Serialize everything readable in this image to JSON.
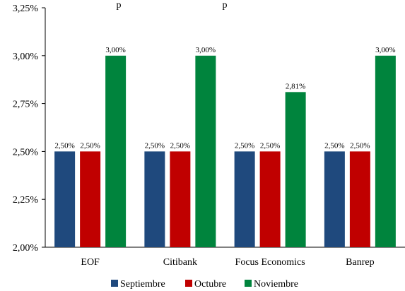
{
  "chart_data": {
    "type": "bar",
    "title_fragments": [
      "p",
      "p"
    ],
    "categories": [
      "EOF",
      "Citibank",
      "Focus Economics",
      "Banrep"
    ],
    "series": [
      {
        "name": "Septiembre",
        "color": "#1F497D",
        "values": [
          2.5,
          2.5,
          2.5,
          2.5
        ],
        "labels": [
          "2,50%",
          "2,50%",
          "2,50%",
          "2,50%"
        ]
      },
      {
        "name": "Octubre",
        "color": "#C00000",
        "values": [
          2.5,
          2.5,
          2.5,
          2.5
        ],
        "labels": [
          "2,50%",
          "2,50%",
          "2,50%",
          "2,50%"
        ]
      },
      {
        "name": "Noviembre",
        "color": "#00843D",
        "values": [
          3.0,
          3.0,
          2.81,
          3.0
        ],
        "labels": [
          "3,00%",
          "3,00%",
          "2,81%",
          "3,00%"
        ]
      }
    ],
    "ylim": [
      2.0,
      3.25
    ],
    "yticks": [
      2.0,
      2.25,
      2.5,
      2.75,
      3.0,
      3.25
    ],
    "ytick_labels": [
      "2,00%",
      "2,25%",
      "2,50%",
      "2,75%",
      "3,00%",
      "3,25%"
    ],
    "grid": false,
    "legend_position": "bottom"
  }
}
